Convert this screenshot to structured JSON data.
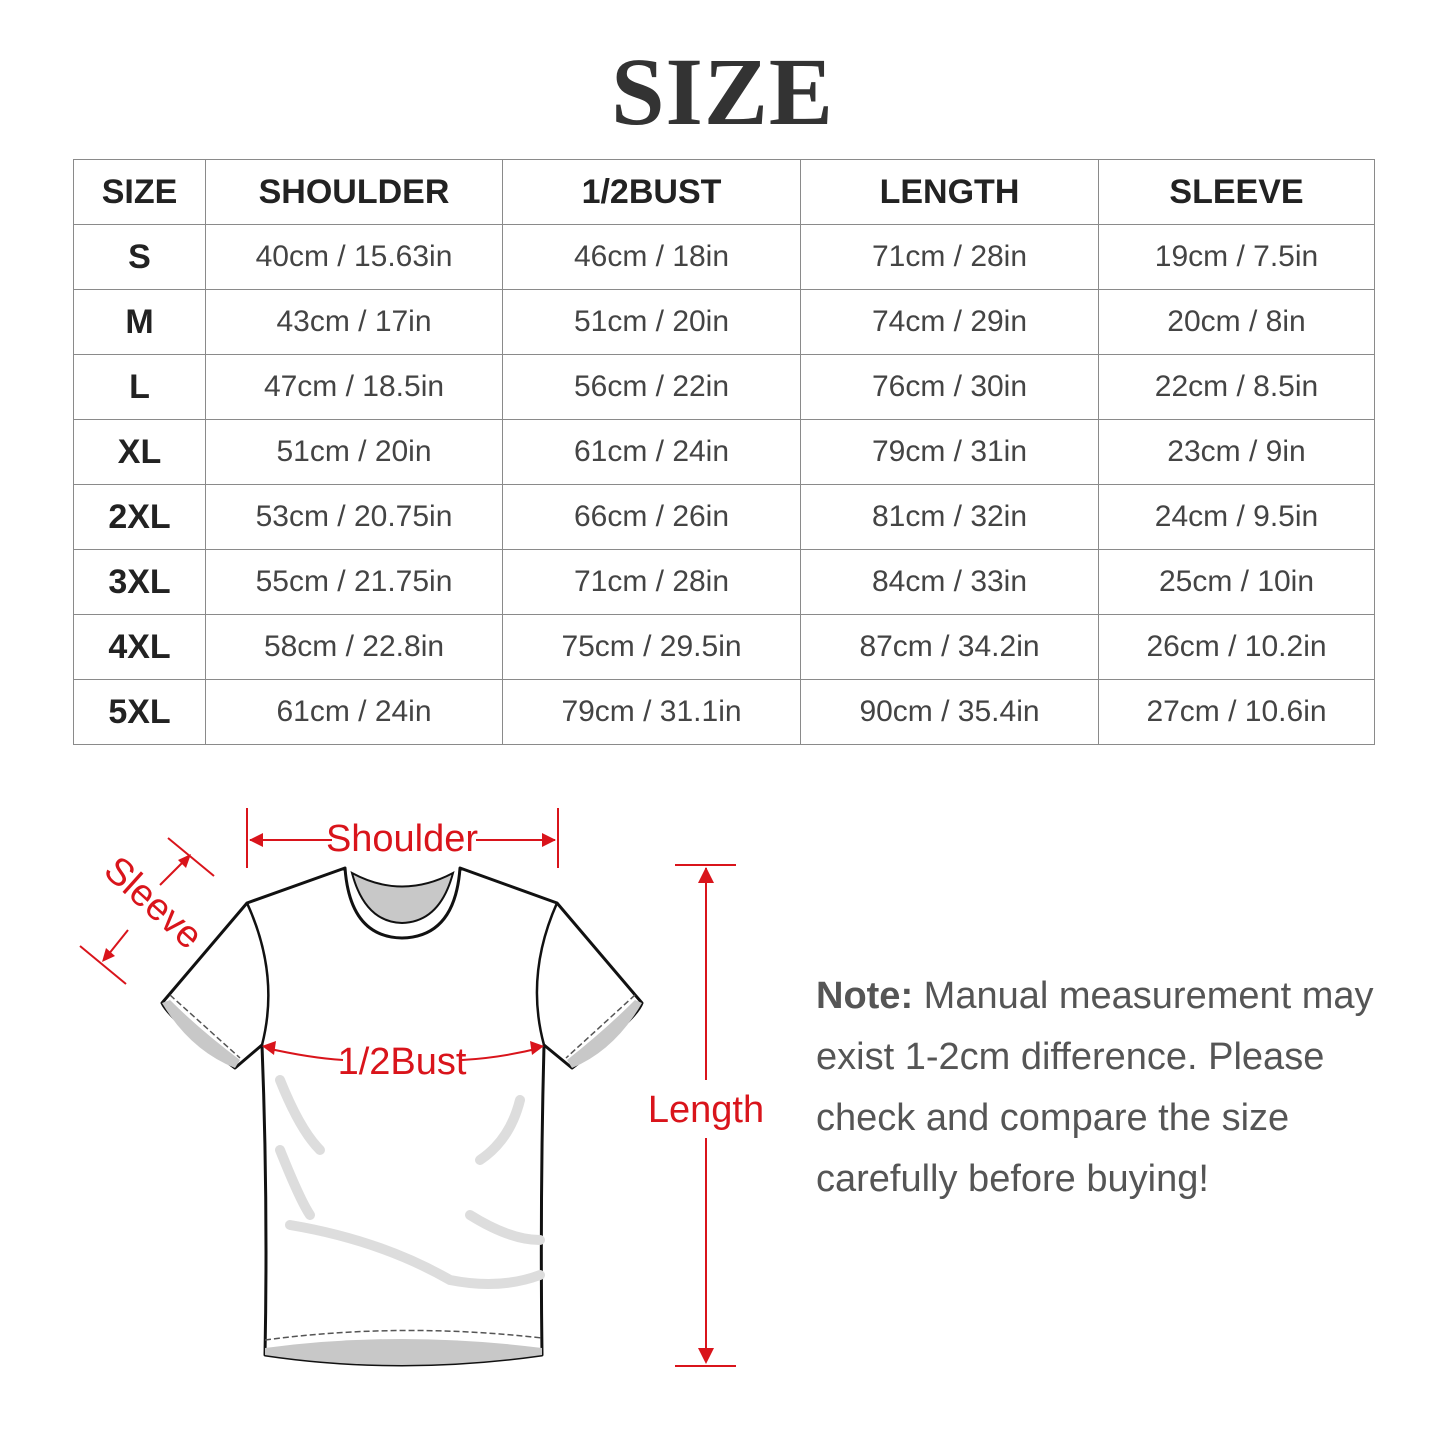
{
  "title": "SIZE",
  "table": {
    "headers": [
      "SIZE",
      "SHOULDER",
      "1/2BUST",
      "LENGTH",
      "SLEEVE"
    ],
    "rows": [
      [
        "S",
        "40cm / 15.63in",
        "46cm / 18in",
        "71cm / 28in",
        "19cm / 7.5in"
      ],
      [
        "M",
        "43cm / 17in",
        "51cm / 20in",
        "74cm / 29in",
        "20cm / 8in"
      ],
      [
        "L",
        "47cm / 18.5in",
        "56cm / 22in",
        "76cm / 30in",
        "22cm / 8.5in"
      ],
      [
        "XL",
        "51cm / 20in",
        "61cm / 24in",
        "79cm / 31in",
        "23cm / 9in"
      ],
      [
        "2XL",
        "53cm / 20.75in",
        "66cm / 26in",
        "81cm / 32in",
        "24cm / 9.5in"
      ],
      [
        "3XL",
        "55cm / 21.75in",
        "71cm / 28in",
        "84cm / 33in",
        "25cm / 10in"
      ],
      [
        "4XL",
        "58cm / 22.8in",
        "75cm / 29.5in",
        "87cm / 34.2in",
        "26cm / 10.2in"
      ],
      [
        "5XL",
        "61cm / 24in",
        "79cm / 31.1in",
        "90cm / 35.4in",
        "27cm / 10.6in"
      ]
    ]
  },
  "diagram": {
    "shoulder": "Shoulder",
    "sleeve": "Sleeve",
    "bust": "1/2Bust",
    "length": "Length",
    "accent_color": "#d9141b"
  },
  "note": {
    "label": "Note:",
    "text": "Manual measurement may exist 1-2cm difference. Please check and compare the size carefully before buying!"
  }
}
